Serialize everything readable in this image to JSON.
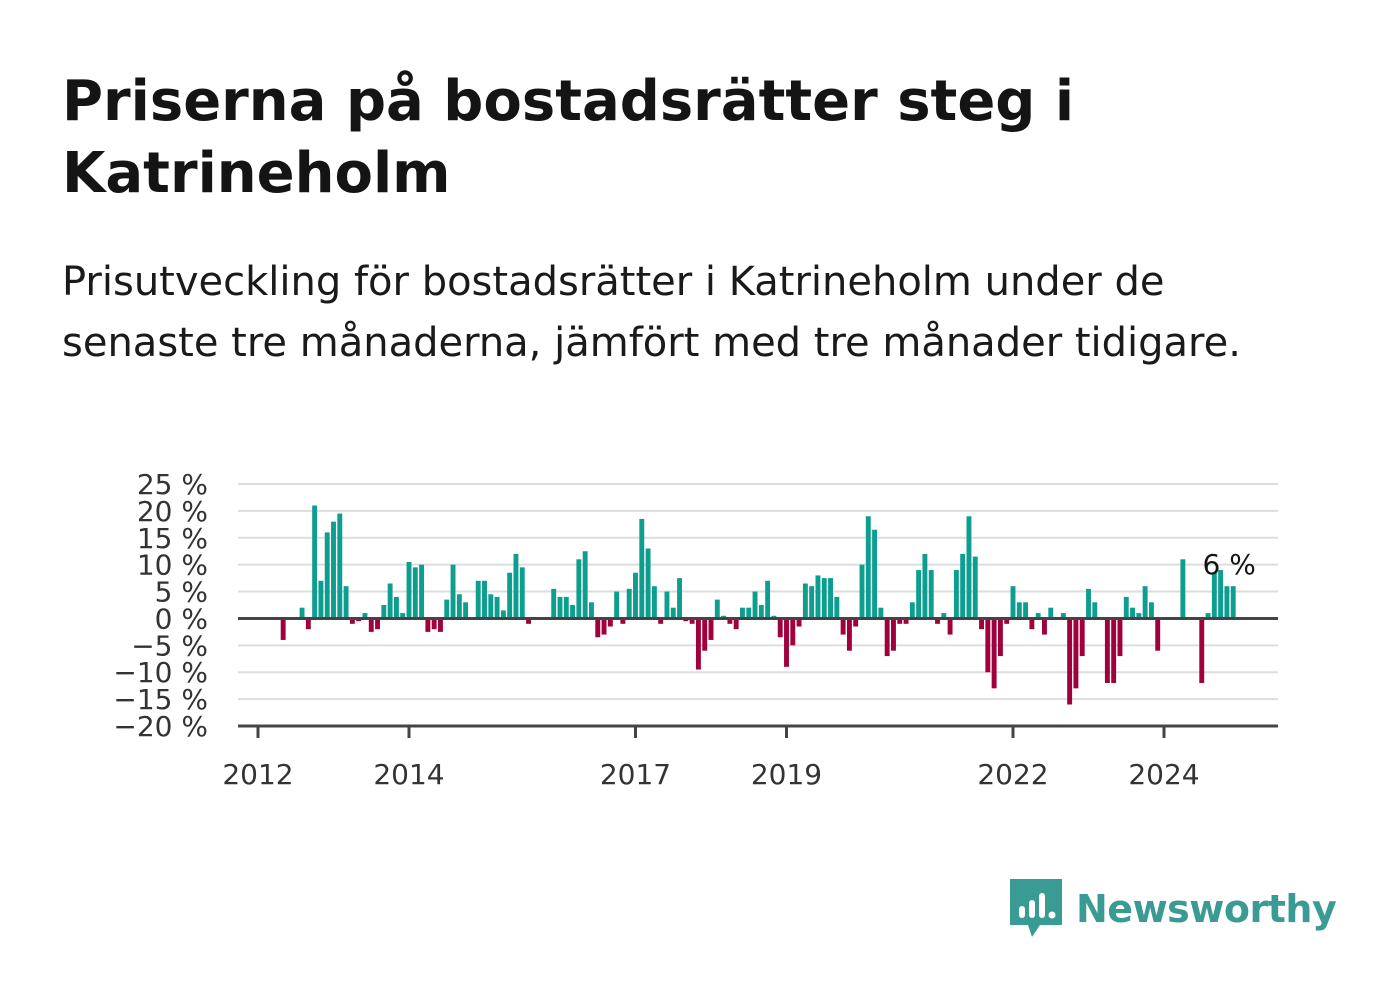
{
  "header": {
    "title": "Priserna på bostadsrätter steg i Katrineholm",
    "subtitle": "Prisutveckling för bostadsrätter i Katrineholm under de senaste tre månaderna, jämfört med tre månader tidigare."
  },
  "brand": {
    "name": "Newsworthy",
    "icon": "newsworthy-logo-icon",
    "color": "#3a9b95"
  },
  "colors": {
    "positive": "#0d9e90",
    "negative": "#a0003c",
    "grid": "#dddddd",
    "zero_line": "#444444",
    "axis": "#444444"
  },
  "chart_data": {
    "type": "bar",
    "title": "Priserna på bostadsrätter steg i Katrineholm",
    "subtitle": "Prisutveckling för bostadsrätter i Katrineholm under de senaste tre månaderna, jämfört med tre månader tidigare.",
    "xlabel": "",
    "ylabel": "",
    "ylim": [
      -20,
      25
    ],
    "y_ticks": [
      25,
      20,
      15,
      10,
      5,
      0,
      -5,
      -10,
      -15,
      -20
    ],
    "y_tick_labels": [
      "25 %",
      "20 %",
      "15 %",
      "10 %",
      "5 %",
      "0 %",
      "−5 %",
      "−10 %",
      "−15 %",
      "−20 %"
    ],
    "x_range": [
      "2012-01",
      "2025-12"
    ],
    "x_ticks": [
      "2012-01",
      "2014-01",
      "2017-01",
      "2019-01",
      "2022-01",
      "2024-01"
    ],
    "x_tick_labels": [
      "2012",
      "2014",
      "2017",
      "2019",
      "2022",
      "2024"
    ],
    "grid": true,
    "annotation": {
      "text": "6 %",
      "x": "2024-12",
      "y": 6
    },
    "series": [
      {
        "x": [
          "2012-01",
          "2012-02",
          "2012-03",
          "2012-04",
          "2012-05",
          "2012-06",
          "2012-07",
          "2012-08",
          "2012-09",
          "2012-10",
          "2012-11",
          "2012-12",
          "2013-01",
          "2013-02",
          "2013-03",
          "2013-04",
          "2013-05",
          "2013-06",
          "2013-07",
          "2013-08",
          "2013-09",
          "2013-10",
          "2013-11",
          "2013-12",
          "2014-01",
          "2014-02",
          "2014-03",
          "2014-04",
          "2014-05",
          "2014-06",
          "2014-07",
          "2014-08",
          "2014-09",
          "2014-10",
          "2014-11",
          "2014-12",
          "2015-01",
          "2015-02",
          "2015-03",
          "2015-04",
          "2015-05",
          "2015-06",
          "2015-07",
          "2015-08",
          "2015-09",
          "2015-10",
          "2015-11",
          "2015-12",
          "2016-01",
          "2016-02",
          "2016-03",
          "2016-04",
          "2016-05",
          "2016-06",
          "2016-07",
          "2016-08",
          "2016-09",
          "2016-10",
          "2016-11",
          "2016-12",
          "2017-01",
          "2017-02",
          "2017-03",
          "2017-04",
          "2017-05",
          "2017-06",
          "2017-07",
          "2017-08",
          "2017-09",
          "2017-10",
          "2017-11",
          "2017-12",
          "2018-01",
          "2018-02",
          "2018-03",
          "2018-04",
          "2018-05",
          "2018-06",
          "2018-07",
          "2018-08",
          "2018-09",
          "2018-10",
          "2018-11",
          "2018-12",
          "2019-01",
          "2019-02",
          "2019-03",
          "2019-04",
          "2019-05",
          "2019-06",
          "2019-07",
          "2019-08",
          "2019-09",
          "2019-10",
          "2019-11",
          "2019-12",
          "2020-01",
          "2020-02",
          "2020-03",
          "2020-04",
          "2020-05",
          "2020-06",
          "2020-07",
          "2020-08",
          "2020-09",
          "2020-10",
          "2020-11",
          "2020-12",
          "2021-01",
          "2021-02",
          "2021-03",
          "2021-04",
          "2021-05",
          "2021-06",
          "2021-07",
          "2021-08",
          "2021-09",
          "2021-10",
          "2021-11",
          "2021-12",
          "2022-01",
          "2022-02",
          "2022-03",
          "2022-04",
          "2022-05",
          "2022-06",
          "2022-07",
          "2022-08",
          "2022-09",
          "2022-10",
          "2022-11",
          "2022-12",
          "2023-01",
          "2023-02",
          "2023-03",
          "2023-04",
          "2023-05",
          "2023-06",
          "2023-07",
          "2023-08",
          "2023-09",
          "2023-10",
          "2023-11",
          "2023-12",
          "2024-01",
          "2024-02",
          "2024-03",
          "2024-04",
          "2024-05",
          "2024-06",
          "2024-07",
          "2024-08",
          "2024-09",
          "2024-10",
          "2024-11",
          "2024-12"
        ],
        "values": [
          0,
          0,
          0,
          0,
          -4,
          0,
          0,
          2,
          -2,
          21,
          7,
          16,
          18,
          19.5,
          6,
          -1,
          -0.5,
          1,
          -2.5,
          -2,
          2.5,
          6.5,
          4,
          1,
          10.5,
          9.5,
          10,
          -2.5,
          -2,
          -2.5,
          3.5,
          10,
          4.5,
          3,
          0,
          7,
          7,
          4.5,
          4,
          1.5,
          8.5,
          12,
          9.5,
          -1,
          0,
          0,
          0,
          5.5,
          4,
          4,
          2.5,
          11,
          12.5,
          3,
          -3.5,
          -3,
          -1.5,
          5,
          -1,
          5.5,
          8.5,
          18.5,
          13,
          6,
          -1,
          5,
          2,
          7.5,
          -0.5,
          -1,
          -9.5,
          -6,
          -4,
          3.5,
          0.5,
          -1,
          -2,
          2,
          2,
          5,
          2.5,
          7,
          0.5,
          -3.5,
          -9,
          -5,
          -1.5,
          6.5,
          6,
          8,
          7.5,
          7.5,
          4,
          -3,
          -6,
          -1.5,
          10,
          19,
          16.5,
          2,
          -7,
          -6,
          -1,
          -1,
          3,
          9,
          12,
          9,
          -1,
          1,
          -3,
          9,
          12,
          19,
          11.5,
          -2,
          -10,
          -13,
          -7,
          -1,
          6,
          3,
          3,
          -2,
          1,
          -3,
          2,
          0,
          1,
          -16,
          -13,
          -7,
          5.5,
          3,
          0,
          -12,
          -12,
          -7,
          4,
          2,
          1,
          6,
          3,
          -6,
          0,
          0,
          0,
          11,
          0,
          0,
          -12,
          1,
          8.5,
          9,
          6,
          6
        ]
      }
    ]
  }
}
